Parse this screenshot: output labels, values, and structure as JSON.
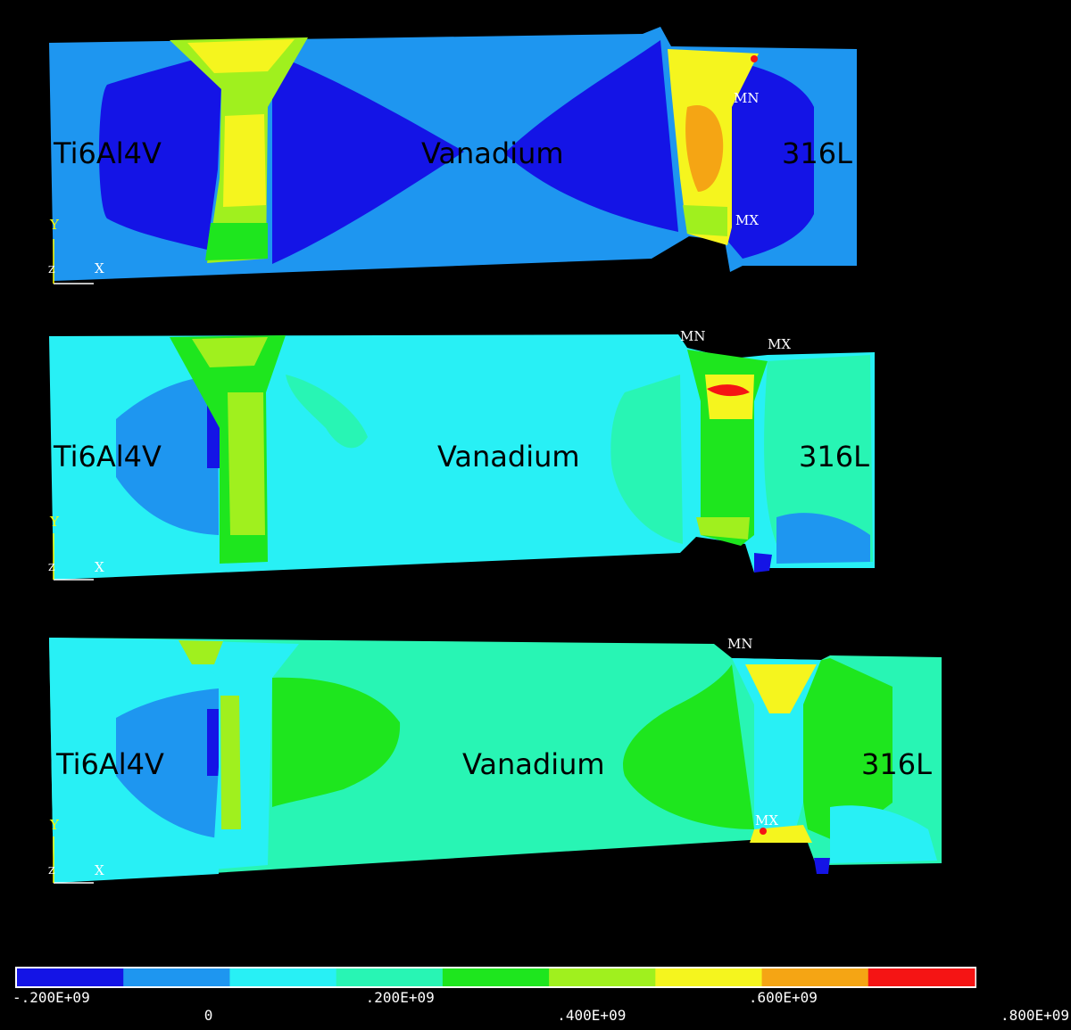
{
  "models": [
    {
      "materials": {
        "left": "Ti6Al4V",
        "middle": "Vanadium",
        "right": "316L"
      },
      "mn_label": "MN",
      "mx_label": "MX",
      "axis_y": "Y",
      "axis_x": "X",
      "axis_z": "Z"
    },
    {
      "materials": {
        "left": "Ti6Al4V",
        "middle": "Vanadium",
        "right": "316L"
      },
      "mn_label": "MN",
      "mx_label": "MX",
      "axis_y": "Y",
      "axis_x": "X",
      "axis_z": "Z"
    },
    {
      "materials": {
        "left": "Ti6Al4V",
        "middle": "Vanadium",
        "right": "316L"
      },
      "mn_label": "MN",
      "mx_label": "MX",
      "axis_y": "Y",
      "axis_x": "X",
      "axis_z": "Z"
    }
  ],
  "legend": {
    "colors": [
      "#1414e6",
      "#1e96f0",
      "#28f0f5",
      "#28f5b4",
      "#1ee61e",
      "#a0f01e",
      "#f5f51e",
      "#f5a514",
      "#f51414"
    ],
    "labels_upper": [
      "-.200E+09",
      ".200E+09",
      ".600E+09"
    ],
    "labels_lower": [
      "0",
      ".400E+09",
      ".800E+09"
    ]
  },
  "palette": {
    "c1": "#1414e6",
    "c2": "#1e96f0",
    "c3": "#28f0f5",
    "c4": "#28f5b4",
    "c5": "#1ee61e",
    "c6": "#a0f01e",
    "c7": "#f5f51e",
    "c8": "#f5a514",
    "c9": "#f51414"
  }
}
